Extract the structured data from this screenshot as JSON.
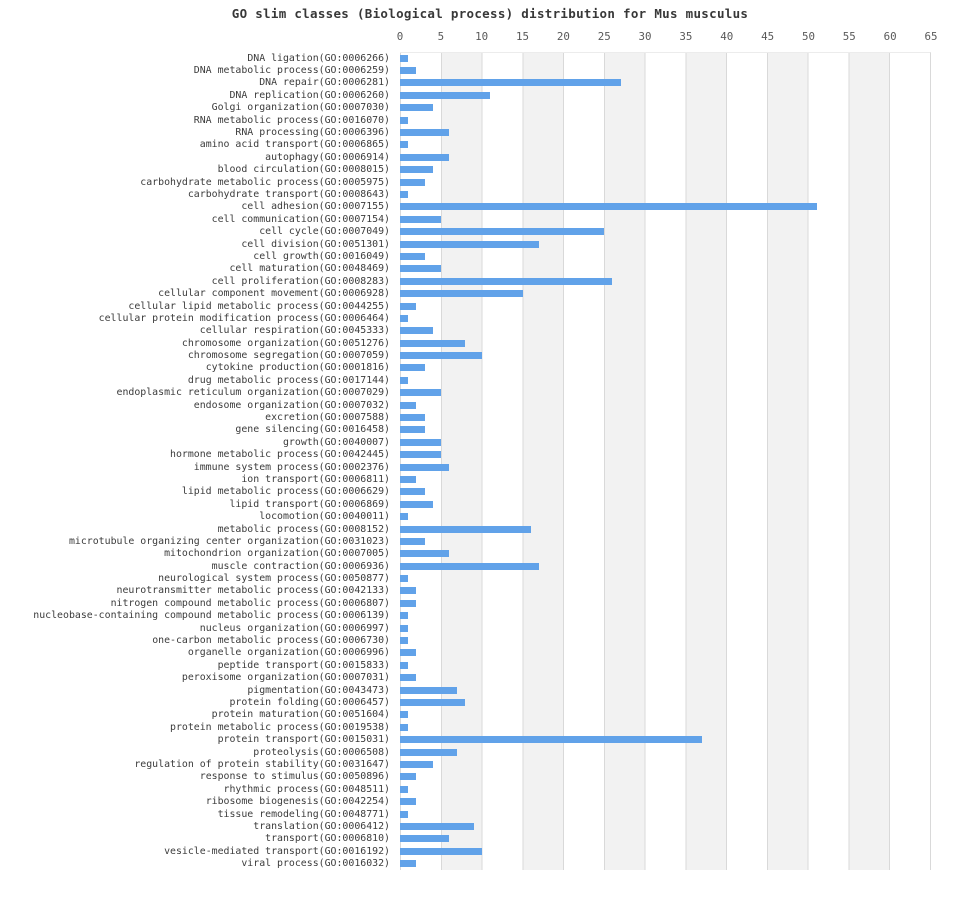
{
  "title": "GO slim classes (Biological process) distribution for Mus musculus",
  "chart_data": {
    "type": "bar",
    "orientation": "horizontal",
    "title": "GO slim classes (Biological process) distribution for Mus musculus",
    "xlabel": "",
    "ylabel": "",
    "xlim": [
      0,
      65
    ],
    "x_ticks": [
      0,
      5,
      10,
      15,
      20,
      25,
      30,
      35,
      40,
      45,
      50,
      55,
      60,
      65
    ],
    "grid": "vertical-gridlines-with-alternating-bands",
    "legend": null,
    "categories": [
      "DNA ligation(GO:0006266)",
      "DNA metabolic process(GO:0006259)",
      "DNA repair(GO:0006281)",
      "DNA replication(GO:0006260)",
      "Golgi organization(GO:0007030)",
      "RNA metabolic process(GO:0016070)",
      "RNA processing(GO:0006396)",
      "amino acid transport(GO:0006865)",
      "autophagy(GO:0006914)",
      "blood circulation(GO:0008015)",
      "carbohydrate metabolic process(GO:0005975)",
      "carbohydrate transport(GO:0008643)",
      "cell adhesion(GO:0007155)",
      "cell communication(GO:0007154)",
      "cell cycle(GO:0007049)",
      "cell division(GO:0051301)",
      "cell growth(GO:0016049)",
      "cell maturation(GO:0048469)",
      "cell proliferation(GO:0008283)",
      "cellular component movement(GO:0006928)",
      "cellular lipid metabolic process(GO:0044255)",
      "cellular protein modification process(GO:0006464)",
      "cellular respiration(GO:0045333)",
      "chromosome organization(GO:0051276)",
      "chromosome segregation(GO:0007059)",
      "cytokine production(GO:0001816)",
      "drug metabolic process(GO:0017144)",
      "endoplasmic reticulum organization(GO:0007029)",
      "endosome organization(GO:0007032)",
      "excretion(GO:0007588)",
      "gene silencing(GO:0016458)",
      "growth(GO:0040007)",
      "hormone metabolic process(GO:0042445)",
      "immune system process(GO:0002376)",
      "ion transport(GO:0006811)",
      "lipid metabolic process(GO:0006629)",
      "lipid transport(GO:0006869)",
      "locomotion(GO:0040011)",
      "metabolic process(GO:0008152)",
      "microtubule organizing center organization(GO:0031023)",
      "mitochondrion organization(GO:0007005)",
      "muscle contraction(GO:0006936)",
      "neurological system process(GO:0050877)",
      "neurotransmitter metabolic process(GO:0042133)",
      "nitrogen compound metabolic process(GO:0006807)",
      "nucleobase-containing compound metabolic process(GO:0006139)",
      "nucleus organization(GO:0006997)",
      "one-carbon metabolic process(GO:0006730)",
      "organelle organization(GO:0006996)",
      "peptide transport(GO:0015833)",
      "peroxisome organization(GO:0007031)",
      "pigmentation(GO:0043473)",
      "protein folding(GO:0006457)",
      "protein maturation(GO:0051604)",
      "protein metabolic process(GO:0019538)",
      "protein transport(GO:0015031)",
      "proteolysis(GO:0006508)",
      "regulation of protein stability(GO:0031647)",
      "response to stimulus(GO:0050896)",
      "rhythmic process(GO:0048511)",
      "ribosome biogenesis(GO:0042254)",
      "tissue remodeling(GO:0048771)",
      "translation(GO:0006412)",
      "transport(GO:0006810)",
      "vesicle-mediated transport(GO:0016192)",
      "viral process(GO:0016032)"
    ],
    "values": [
      1,
      2,
      27,
      11,
      4,
      1,
      6,
      1,
      6,
      4,
      3,
      1,
      51,
      5,
      25,
      17,
      3,
      5,
      26,
      15,
      2,
      1,
      4,
      8,
      10,
      3,
      1,
      5,
      2,
      3,
      3,
      5,
      5,
      6,
      2,
      3,
      4,
      1,
      16,
      3,
      6,
      17,
      1,
      2,
      2,
      1,
      1,
      1,
      2,
      1,
      2,
      7,
      8,
      1,
      1,
      37,
      7,
      4,
      2,
      1,
      2,
      1,
      9,
      6,
      10,
      2
    ],
    "colors": {
      "bar": "#61a2e9",
      "band_white": "#ffffff",
      "band_light": "#f2f2f2",
      "gridline": "#d9d9d9",
      "tick_text": "#595959",
      "label_text": "#3c3c3c",
      "title_text": "#383838"
    }
  }
}
